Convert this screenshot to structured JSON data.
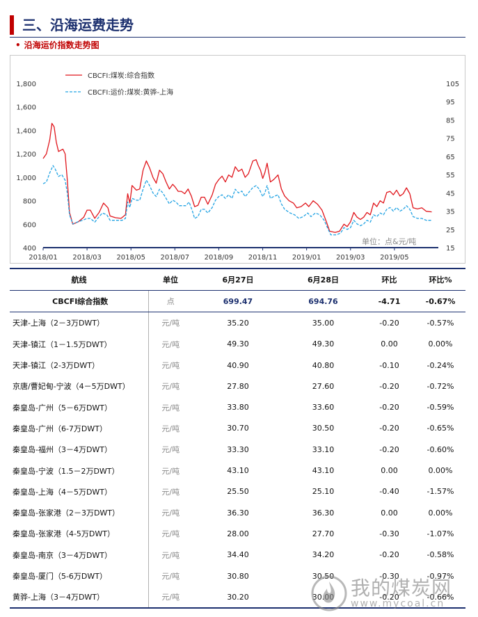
{
  "header": {
    "section_title": "三、沿海运费走势",
    "chart_subtitle": "沿海运价指数走势图",
    "bullet": "•"
  },
  "chart_data": {
    "type": "line",
    "unit_note": "单位：点&元/吨",
    "left_axis": {
      "ylim": [
        400,
        1800
      ],
      "ticks": [
        "1,800",
        "1,600",
        "1,400",
        "1,200",
        "1,000",
        "800",
        "600",
        "400"
      ]
    },
    "right_axis": {
      "ylim": [
        15,
        105
      ],
      "ticks": [
        "105",
        "95",
        "85",
        "75",
        "65",
        "55",
        "45",
        "35",
        "25",
        "15"
      ]
    },
    "x_ticks": [
      "2018/01",
      "2018/03",
      "2018/05",
      "2018/07",
      "2018/09",
      "2018/11",
      "2019/01",
      "2019/03",
      "2019/05"
    ],
    "x_range_months": [
      0,
      18
    ],
    "series": [
      {
        "name": "CBCFI:煤炭:综合指数",
        "axis": "left",
        "color": "#e0151b",
        "style": "solid",
        "points": [
          [
            0,
            1160
          ],
          [
            0.15,
            1200
          ],
          [
            0.3,
            1320
          ],
          [
            0.4,
            1460
          ],
          [
            0.5,
            1430
          ],
          [
            0.6,
            1300
          ],
          [
            0.7,
            1220
          ],
          [
            0.9,
            1240
          ],
          [
            1.0,
            1200
          ],
          [
            1.1,
            980
          ],
          [
            1.2,
            700
          ],
          [
            1.35,
            600
          ],
          [
            1.6,
            620
          ],
          [
            1.85,
            660
          ],
          [
            2.0,
            720
          ],
          [
            2.15,
            720
          ],
          [
            2.35,
            650
          ],
          [
            2.55,
            700
          ],
          [
            2.75,
            780
          ],
          [
            2.95,
            740
          ],
          [
            3.05,
            670
          ],
          [
            3.3,
            655
          ],
          [
            3.55,
            650
          ],
          [
            3.75,
            680
          ],
          [
            3.85,
            860
          ],
          [
            3.95,
            780
          ],
          [
            4.05,
            930
          ],
          [
            4.25,
            890
          ],
          [
            4.4,
            900
          ],
          [
            4.55,
            1060
          ],
          [
            4.7,
            1140
          ],
          [
            4.85,
            1080
          ],
          [
            5.0,
            1000
          ],
          [
            5.15,
            950
          ],
          [
            5.3,
            1060
          ],
          [
            5.45,
            1030
          ],
          [
            5.6,
            960
          ],
          [
            5.75,
            900
          ],
          [
            5.9,
            940
          ],
          [
            6.0,
            920
          ],
          [
            6.15,
            880
          ],
          [
            6.3,
            880
          ],
          [
            6.45,
            860
          ],
          [
            6.6,
            900
          ],
          [
            6.75,
            840
          ],
          [
            6.9,
            750
          ],
          [
            7.05,
            760
          ],
          [
            7.2,
            830
          ],
          [
            7.35,
            830
          ],
          [
            7.5,
            770
          ],
          [
            7.7,
            850
          ],
          [
            7.85,
            940
          ],
          [
            8.0,
            980
          ],
          [
            8.15,
            1010
          ],
          [
            8.3,
            960
          ],
          [
            8.45,
            1020
          ],
          [
            8.6,
            1000
          ],
          [
            8.75,
            1090
          ],
          [
            8.9,
            1050
          ],
          [
            9.05,
            1070
          ],
          [
            9.2,
            1000
          ],
          [
            9.35,
            1030
          ],
          [
            9.55,
            1140
          ],
          [
            9.7,
            1150
          ],
          [
            9.8,
            1100
          ],
          [
            9.9,
            1060
          ],
          [
            10.0,
            990
          ],
          [
            10.1,
            1040
          ],
          [
            10.2,
            1120
          ],
          [
            10.35,
            960
          ],
          [
            10.5,
            980
          ],
          [
            10.7,
            1020
          ],
          [
            10.85,
            900
          ],
          [
            11.0,
            840
          ],
          [
            11.2,
            800
          ],
          [
            11.4,
            780
          ],
          [
            11.55,
            740
          ],
          [
            11.75,
            750
          ],
          [
            11.95,
            780
          ],
          [
            12.1,
            750
          ],
          [
            12.3,
            800
          ],
          [
            12.5,
            770
          ],
          [
            12.7,
            720
          ],
          [
            12.9,
            620
          ],
          [
            13.05,
            540
          ],
          [
            13.3,
            530
          ],
          [
            13.5,
            540
          ],
          [
            13.7,
            600
          ],
          [
            13.85,
            580
          ],
          [
            14.0,
            620
          ],
          [
            14.15,
            700
          ],
          [
            14.3,
            660
          ],
          [
            14.45,
            640
          ],
          [
            14.6,
            660
          ],
          [
            14.75,
            700
          ],
          [
            14.9,
            680
          ],
          [
            15.05,
            780
          ],
          [
            15.2,
            750
          ],
          [
            15.35,
            800
          ],
          [
            15.5,
            780
          ],
          [
            15.65,
            870
          ],
          [
            15.8,
            880
          ],
          [
            15.95,
            850
          ],
          [
            16.1,
            890
          ],
          [
            16.25,
            840
          ],
          [
            16.4,
            860
          ],
          [
            16.55,
            910
          ],
          [
            16.7,
            860
          ],
          [
            16.85,
            740
          ],
          [
            17.05,
            730
          ],
          [
            17.25,
            740
          ],
          [
            17.45,
            710
          ],
          [
            17.7,
            705
          ]
        ]
      },
      {
        "name": "CBCFI:运价:煤炭:黄骅-上海",
        "axis": "right",
        "color": "#22a3e3",
        "style": "dashed",
        "points": [
          [
            0,
            50
          ],
          [
            0.15,
            51
          ],
          [
            0.3,
            56
          ],
          [
            0.45,
            60
          ],
          [
            0.55,
            58
          ],
          [
            0.7,
            54
          ],
          [
            0.85,
            55
          ],
          [
            1.0,
            52
          ],
          [
            1.1,
            45
          ],
          [
            1.2,
            33
          ],
          [
            1.35,
            28
          ],
          [
            1.55,
            29
          ],
          [
            1.8,
            30
          ],
          [
            2.0,
            31
          ],
          [
            2.15,
            31
          ],
          [
            2.35,
            29
          ],
          [
            2.55,
            32
          ],
          [
            2.7,
            34
          ],
          [
            2.9,
            33
          ],
          [
            3.05,
            30
          ],
          [
            3.3,
            30
          ],
          [
            3.6,
            30
          ],
          [
            3.75,
            31
          ],
          [
            3.85,
            40
          ],
          [
            3.95,
            37
          ],
          [
            4.05,
            42
          ],
          [
            4.25,
            41
          ],
          [
            4.4,
            41
          ],
          [
            4.55,
            47
          ],
          [
            4.7,
            52
          ],
          [
            4.85,
            49
          ],
          [
            5.0,
            45
          ],
          [
            5.15,
            43
          ],
          [
            5.3,
            47
          ],
          [
            5.45,
            45
          ],
          [
            5.6,
            42
          ],
          [
            5.75,
            39
          ],
          [
            5.9,
            41
          ],
          [
            6.05,
            40
          ],
          [
            6.2,
            38
          ],
          [
            6.35,
            38
          ],
          [
            6.5,
            38
          ],
          [
            6.65,
            40
          ],
          [
            6.8,
            35
          ],
          [
            6.9,
            31
          ],
          [
            7.05,
            32
          ],
          [
            7.2,
            36
          ],
          [
            7.35,
            36
          ],
          [
            7.5,
            34
          ],
          [
            7.7,
            37
          ],
          [
            7.85,
            41
          ],
          [
            8.0,
            43
          ],
          [
            8.15,
            44
          ],
          [
            8.3,
            42
          ],
          [
            8.45,
            44
          ],
          [
            8.6,
            42
          ],
          [
            8.75,
            47
          ],
          [
            8.9,
            45
          ],
          [
            9.05,
            46
          ],
          [
            9.2,
            43
          ],
          [
            9.35,
            45
          ],
          [
            9.55,
            48
          ],
          [
            9.7,
            49
          ],
          [
            9.85,
            47
          ],
          [
            10.0,
            43
          ],
          [
            10.1,
            45
          ],
          [
            10.2,
            49
          ],
          [
            10.35,
            42
          ],
          [
            10.5,
            43
          ],
          [
            10.7,
            44
          ],
          [
            10.85,
            39
          ],
          [
            11.0,
            36
          ],
          [
            11.25,
            34
          ],
          [
            11.45,
            33
          ],
          [
            11.65,
            31
          ],
          [
            11.85,
            32
          ],
          [
            12.05,
            34
          ],
          [
            12.2,
            32
          ],
          [
            12.4,
            34
          ],
          [
            12.6,
            33
          ],
          [
            12.8,
            30
          ],
          [
            12.95,
            26
          ],
          [
            13.1,
            22
          ],
          [
            13.35,
            22
          ],
          [
            13.55,
            23
          ],
          [
            13.7,
            26
          ],
          [
            13.85,
            25
          ],
          [
            14.0,
            26
          ],
          [
            14.15,
            30
          ],
          [
            14.3,
            28
          ],
          [
            14.45,
            27
          ],
          [
            14.6,
            28
          ],
          [
            14.75,
            30
          ],
          [
            14.9,
            29
          ],
          [
            15.05,
            33
          ],
          [
            15.2,
            32
          ],
          [
            15.35,
            34
          ],
          [
            15.5,
            33
          ],
          [
            15.65,
            36
          ],
          [
            15.8,
            37
          ],
          [
            15.95,
            35
          ],
          [
            16.1,
            37
          ],
          [
            16.25,
            35
          ],
          [
            16.4,
            36
          ],
          [
            16.55,
            38
          ],
          [
            16.7,
            36
          ],
          [
            16.85,
            32
          ],
          [
            17.05,
            31
          ],
          [
            17.25,
            31
          ],
          [
            17.45,
            30
          ],
          [
            17.7,
            30
          ]
        ]
      }
    ]
  },
  "table": {
    "headers": [
      "航线",
      "单位",
      "6月27日",
      "6月28日",
      "环比",
      "环比%"
    ],
    "rows": [
      {
        "route": "CBCFI综合指数",
        "unit": "点",
        "v1": "699.47",
        "v2": "694.76",
        "chg": "-4.71",
        "pct": "-0.67%"
      },
      {
        "route": "天津-上海（2－3万DWT）",
        "unit": "元/吨",
        "v1": "35.20",
        "v2": "35.00",
        "chg": "-0.20",
        "pct": "-0.57%"
      },
      {
        "route": "天津-镇江（1－1.5万DWT）",
        "unit": "元/吨",
        "v1": "49.30",
        "v2": "49.30",
        "chg": "0.00",
        "pct": "0.00%"
      },
      {
        "route": "天津-镇江（2-3万DWT）",
        "unit": "元/吨",
        "v1": "40.90",
        "v2": "40.80",
        "chg": "-0.10",
        "pct": "-0.24%"
      },
      {
        "route": "京唐/曹妃甸-宁波（4－5万DWT）",
        "unit": "元/吨",
        "v1": "27.80",
        "v2": "27.60",
        "chg": "-0.20",
        "pct": "-0.72%"
      },
      {
        "route": "秦皇岛-广州（5－6万DWT）",
        "unit": "元/吨",
        "v1": "33.80",
        "v2": "33.60",
        "chg": "-0.20",
        "pct": "-0.59%"
      },
      {
        "route": "秦皇岛-广州（6-7万DWT）",
        "unit": "元/吨",
        "v1": "30.70",
        "v2": "30.50",
        "chg": "-0.20",
        "pct": "-0.65%"
      },
      {
        "route": "秦皇岛-福州（3－4万DWT）",
        "unit": "元/吨",
        "v1": "33.30",
        "v2": "33.10",
        "chg": "-0.20",
        "pct": "-0.60%"
      },
      {
        "route": "秦皇岛-宁波（1.5－2万DWT）",
        "unit": "元/吨",
        "v1": "43.10",
        "v2": "43.10",
        "chg": "0.00",
        "pct": "0.00%"
      },
      {
        "route": "秦皇岛-上海（4－5万DWT）",
        "unit": "元/吨",
        "v1": "25.50",
        "v2": "25.10",
        "chg": "-0.40",
        "pct": "-1.57%"
      },
      {
        "route": "秦皇岛-张家港（2－3万DWT）",
        "unit": "元/吨",
        "v1": "36.30",
        "v2": "36.30",
        "chg": "0.00",
        "pct": "0.00%"
      },
      {
        "route": "秦皇岛-张家港（4-5万DWT）",
        "unit": "元/吨",
        "v1": "28.00",
        "v2": "27.70",
        "chg": "-0.30",
        "pct": "-1.07%"
      },
      {
        "route": "秦皇岛-南京（3－4万DWT）",
        "unit": "元/吨",
        "v1": "34.40",
        "v2": "34.20",
        "chg": "-0.20",
        "pct": "-0.58%"
      },
      {
        "route": "秦皇岛-厦门（5-6万DWT）",
        "unit": "元/吨",
        "v1": "30.80",
        "v2": "30.50",
        "chg": "-0.30",
        "pct": "-0.97%"
      },
      {
        "route": "黄骅-上海（3－4万DWT）",
        "unit": "元/吨",
        "v1": "30.20",
        "v2": "30.00",
        "chg": "-0.20",
        "pct": "-0.66%"
      }
    ]
  },
  "watermark": {
    "name": "我的煤炭网",
    "url": "www.mycoal.cn"
  }
}
